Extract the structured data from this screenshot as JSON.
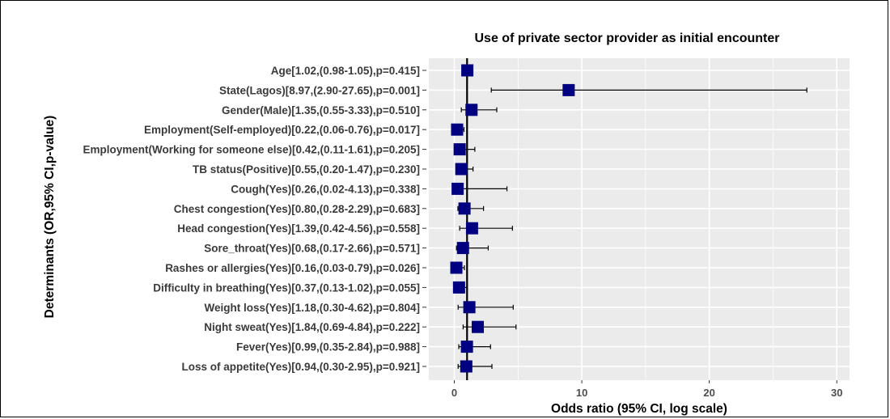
{
  "chart_data": {
    "type": "forest",
    "title": "Use of private sector provider as initial encounter",
    "xlabel": "Odds ratio (95% CI, log scale)",
    "ylabel": "Determinants (OR,95% CI,p-value)",
    "xlim": [
      -2,
      31
    ],
    "xticks": [
      0,
      10,
      20,
      30
    ],
    "reference_line": 1,
    "marker_color": "#000080",
    "panel_color": "#ebebeb",
    "rows": [
      {
        "label": "Age[1.02,(0.98-1.05),p=0.415]",
        "or": 1.02,
        "lo": 0.98,
        "hi": 1.05
      },
      {
        "label": "State(Lagos)[8.97,(2.90-27.65),p=0.001]",
        "or": 8.97,
        "lo": 2.9,
        "hi": 27.65
      },
      {
        "label": "Gender(Male)[1.35,(0.55-3.33),p=0.510]",
        "or": 1.35,
        "lo": 0.55,
        "hi": 3.33
      },
      {
        "label": "Employment(Self-employed)[0.22,(0.06-0.76),p=0.017]",
        "or": 0.22,
        "lo": 0.06,
        "hi": 0.76
      },
      {
        "label": "Employment(Working for someone else)[0.42,(0.11-1.61),p=0.205]",
        "or": 0.42,
        "lo": 0.11,
        "hi": 1.61
      },
      {
        "label": "TB status(Positive)[0.55,(0.20-1.47),p=0.230]",
        "or": 0.55,
        "lo": 0.2,
        "hi": 1.47
      },
      {
        "label": "Cough(Yes)[0.26,(0.02-4.13),p=0.338]",
        "or": 0.26,
        "lo": 0.02,
        "hi": 4.13
      },
      {
        "label": "Chest congestion(Yes)[0.80,(0.28-2.29),p=0.683]",
        "or": 0.8,
        "lo": 0.28,
        "hi": 2.29
      },
      {
        "label": "Head congestion(Yes)[1.39,(0.42-4.56),p=0.558]",
        "or": 1.39,
        "lo": 0.42,
        "hi": 4.56
      },
      {
        "label": "Sore_throat(Yes)[0.68,(0.17-2.66),p=0.571]",
        "or": 0.68,
        "lo": 0.17,
        "hi": 2.66
      },
      {
        "label": "Rashes or allergies(Yes)[0.16,(0.03-0.79),p=0.026]",
        "or": 0.16,
        "lo": 0.03,
        "hi": 0.79
      },
      {
        "label": "Difficulty in breathing(Yes)[0.37,(0.13-1.02),p=0.055]",
        "or": 0.37,
        "lo": 0.13,
        "hi": 1.02
      },
      {
        "label": "Weight loss(Yes)[1.18,(0.30-4.62),p=0.804]",
        "or": 1.18,
        "lo": 0.3,
        "hi": 4.62
      },
      {
        "label": "Night sweat(Yes)[1.84,(0.69-4.84),p=0.222]",
        "or": 1.84,
        "lo": 0.69,
        "hi": 4.84
      },
      {
        "label": "Fever(Yes)[0.99,(0.35-2.84),p=0.988]",
        "or": 0.99,
        "lo": 0.35,
        "hi": 2.84
      },
      {
        "label": "Loss of appetite(Yes)[0.94,(0.30-2.95),p=0.921]",
        "or": 0.94,
        "lo": 0.3,
        "hi": 2.95
      }
    ]
  }
}
